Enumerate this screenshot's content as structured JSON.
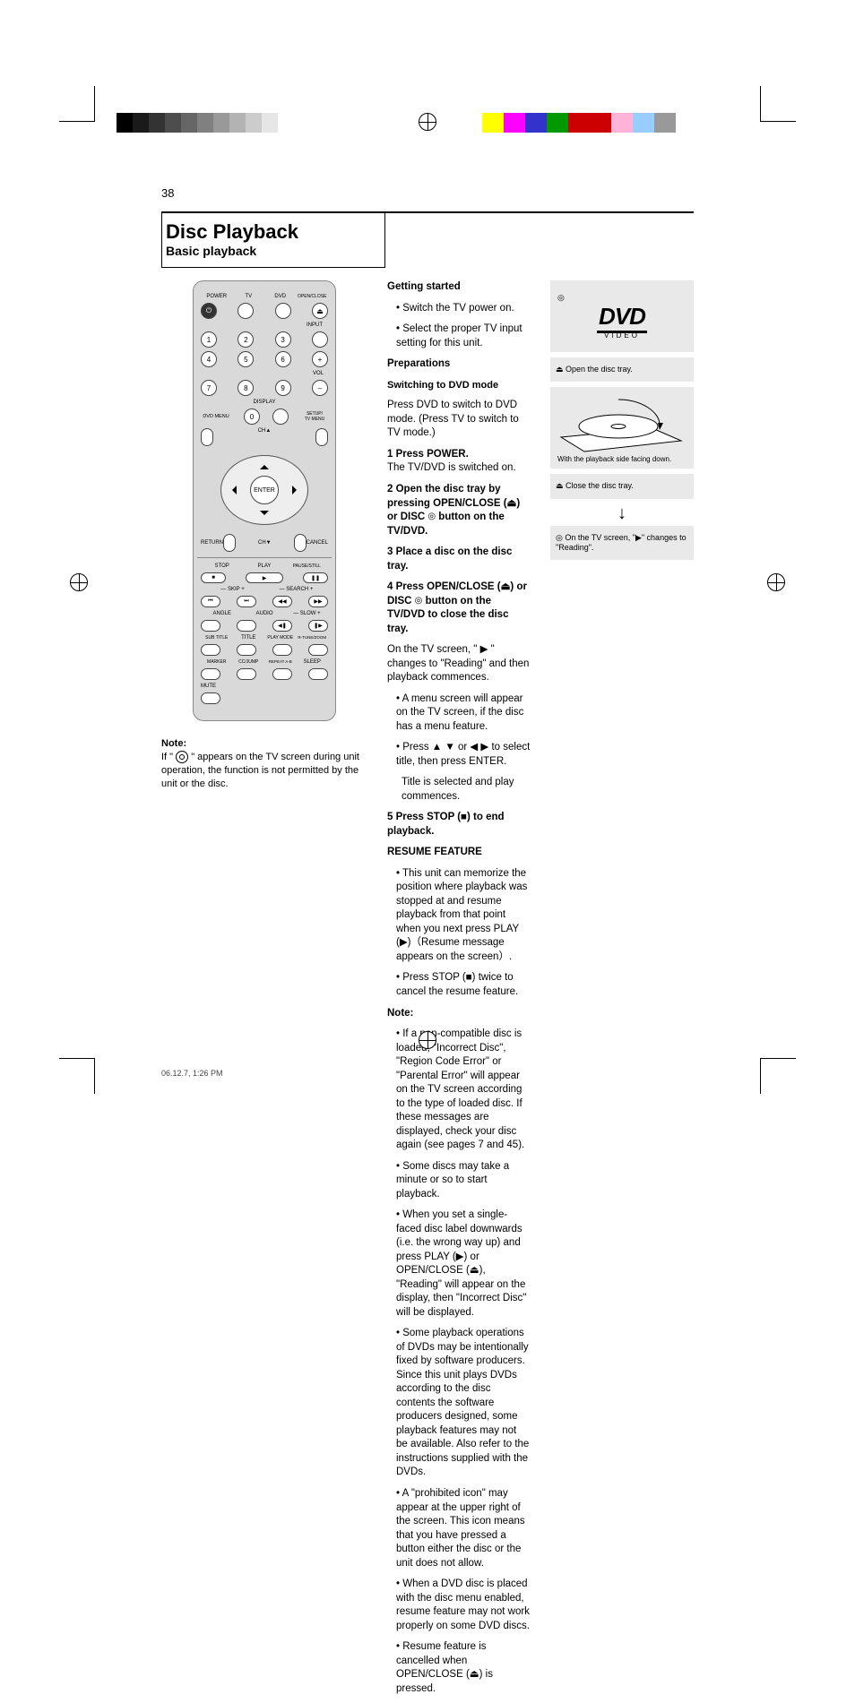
{
  "page_number": "38",
  "heading": "Disc Playback",
  "section_title": "Basic playback",
  "reg_gray_ramp": [
    "#000000",
    "#1a1a1a",
    "#333333",
    "#4d4d4d",
    "#666666",
    "#808080",
    "#999999",
    "#b3b3b3",
    "#cccccc",
    "#e6e6e6",
    "#ffffff"
  ],
  "reg_color_bar": [
    "#ffff00",
    "#ff00ff",
    "#3333cc",
    "#009900",
    "#cc0000",
    "#cc0000",
    "#ffb3d9",
    "#99ccff",
    "#999999"
  ],
  "remote": {
    "row1_labels": [
      "POWER",
      "TV",
      "DVD",
      "OPEN/CLOSE"
    ],
    "power_glyph": "⏻",
    "eject_glyph": "⏏",
    "input_label": "INPUT",
    "num": [
      "1",
      "2",
      "3",
      "4",
      "5",
      "6",
      "7",
      "8",
      "9",
      "0"
    ],
    "vol_label": "VOL",
    "plus": "+",
    "minus": "–",
    "display_label": "DISPLAY",
    "setup_label": "SETUP/\nTV MENU",
    "dvdmenu_label": "DVD MENU",
    "ch_up": "CH▲",
    "ch_down": "CH▼",
    "enter": "ENTER",
    "return": "RETURN",
    "cancel": "CANCEL",
    "playback_row1": [
      "STOP",
      "PLAY",
      "PAUSE/STILL"
    ],
    "playback_glyphs": [
      "■",
      "▶",
      "❚❚"
    ],
    "skip_label": "— SKIP +",
    "search_label": "— SEARCH +",
    "skip_glyphs": [
      "⏮",
      "⏭",
      "◀◀",
      "▶▶"
    ],
    "row4_labels": [
      "ANGLE",
      "AUDIO",
      "— SLOW +"
    ],
    "slow_glyphs": [
      "◀❚",
      "❚▶"
    ],
    "row5_labels": [
      "SUB TITLE",
      "TITLE",
      "PLAY MODE",
      "R-TUNE/ZOOM"
    ],
    "row6_labels": [
      "MARKER",
      "CC/JUMP",
      "REPEAT A-B",
      "SLEEP"
    ],
    "mute_label": "MUTE"
  },
  "left_note_header": "Note:",
  "left_note_lines": [
    "If \" ",
    " \" appears on the TV screen during unit operation, the function is not permitted by the unit or the disc."
  ],
  "mid": {
    "p1": "Getting started",
    "p1b": [
      "• Switch the TV power on.",
      "• Select the proper TV input setting for this unit."
    ],
    "p2_strong": "Preparations",
    "p2_sub": "Switching to DVD mode",
    "p2_text": "Press DVD to switch to DVD mode. (Press TV to switch to TV mode.)",
    "step1_n": "1",
    "step1": "Press POWER.",
    "step1_sub": "The TV/DVD is switched on.",
    "step2_n": "2",
    "step2": "Open the disc tray by pressing OPEN/CLOSE (⏏) or DISC ",
    "step2_tail": " button on the TV/DVD.",
    "step3_n": "3",
    "step3": "Place a disc on the disc tray.",
    "step4_n": "4",
    "step4": "Press OPEN/CLOSE (⏏) or DISC ",
    "step4_tail": " button on the TV/DVD to close the disc tray.",
    "menu_line": "On the TV screen, \" ▶ \" changes to \"Reading\" and then playback commences.",
    "auto_line": "• A menu screen will appear on the TV screen, if the disc has a menu feature.",
    "cursor_line": "• Press ▲ ▼ or ◀ ▶ to select title, then press ENTER.",
    "cursor_sub": "Title is selected and play commences.",
    "step5_n": "5",
    "step5": "Press STOP (■) to end playback.",
    "resume_head": "RESUME FEATURE",
    "resume_body": "• This unit can memorize the position where playback was stopped at and resume playback from that point when you next press PLAY (▶)（Resume message appears on the screen）.",
    "resume_body2": "• Press STOP (■) twice to cancel the resume feature.",
    "bottom_note_head": "Note:",
    "bottom_notes": [
      "• If a non-compatible disc is loaded, \"Incorrect Disc\", \"Region Code Error\" or \"Parental Error\" will appear on the TV screen according to the type of loaded disc. If these messages are displayed, check your disc again (see pages 7 and 45).",
      "• Some discs may take a minute or so to start playback.",
      "• When you set a single-faced disc label downwards (i.e. the wrong way up) and press PLAY (▶) or OPEN/CLOSE (⏏), \"Reading\" will appear on the display, then \"Incorrect Disc\" will be displayed.",
      "• Some playback operations of DVDs may be intentionally fixed by software producers. Since this unit plays DVDs according to the disc contents the software producers designed, some playback features may not be available. Also refer to the instructions supplied with the DVDs.",
      "• A \"prohibited icon\" may appear at the upper right of the screen. This icon means that you have pressed a button either the disc or the unit does not allow.",
      "• When a DVD disc is placed with the disc menu enabled, resume feature may not work properly on some DVD discs.",
      "• Resume feature is cancelled when OPEN/CLOSE (⏏) is pressed."
    ]
  },
  "right": {
    "dvd_logo": "DVD",
    "dvd_sub": "VIDEO",
    "box2": "⏏  Open the disc tray.",
    "box3_caption": "With the playback side facing down.",
    "box4": "⏏  Close the disc tray.",
    "arrow": "↓",
    "box5_a": "On the TV screen, \"",
    "box5_b": "\" changes to",
    "box5_c": "\"Reading\"."
  },
  "foot_caption": "06.12.7, 1:26 PM"
}
